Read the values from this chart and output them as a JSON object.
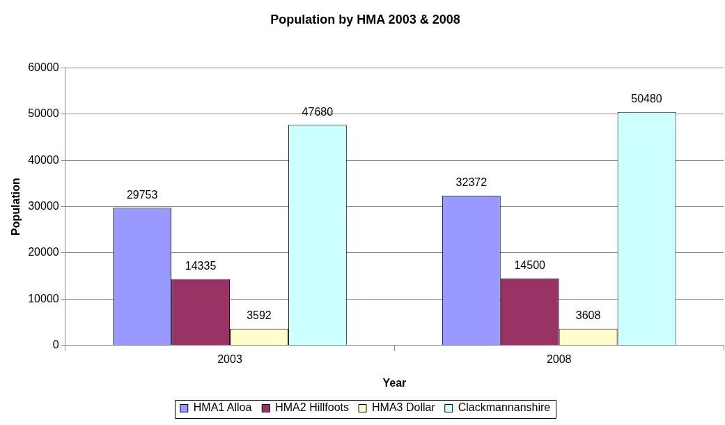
{
  "chart_data": {
    "type": "bar",
    "title": "Population by HMA 2003 & 2008",
    "xlabel": "Year",
    "ylabel": "Population",
    "categories": [
      "2003",
      "2008"
    ],
    "series": [
      {
        "name": "HMA1 Alloa",
        "color": "#9999ff",
        "values": [
          29753,
          32372
        ]
      },
      {
        "name": "HMA2 Hillfoots",
        "color": "#993366",
        "values": [
          14335,
          14500
        ]
      },
      {
        "name": "HMA3 Dollar",
        "color": "#ffffcc",
        "values": [
          3592,
          3608
        ]
      },
      {
        "name": "Clackmannanshire",
        "color": "#ccffff",
        "values": [
          47680,
          50480
        ]
      }
    ],
    "ylim": [
      0,
      60000
    ],
    "yticks": [
      0,
      10000,
      20000,
      30000,
      40000,
      50000,
      60000
    ],
    "grid": "y",
    "legend": "bottom",
    "data_labels": true
  }
}
